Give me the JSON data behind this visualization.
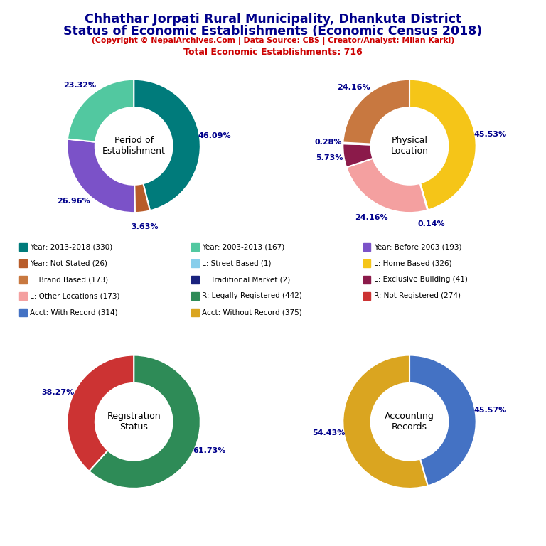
{
  "title_line1": "Chhathar Jorpati Rural Municipality, Dhankuta District",
  "title_line2": "Status of Economic Establishments (Economic Census 2018)",
  "subtitle1": "(Copyright © NepalArchives.Com | Data Source: CBS | Creator/Analyst: Milan Karki)",
  "subtitle2": "Total Economic Establishments: 716",
  "charts": [
    {
      "title": "Period of\nEstablishment",
      "slices": [
        46.09,
        3.63,
        26.96,
        23.32
      ],
      "colors": [
        "#007B7B",
        "#B85C2A",
        "#7B52C8",
        "#52C8A0"
      ],
      "labels": [
        "46.09%",
        "3.63%",
        "26.96%",
        "23.32%"
      ],
      "startangle": 90,
      "counterclock": false
    },
    {
      "title": "Physical\nLocation",
      "slices": [
        45.53,
        0.14,
        24.16,
        5.73,
        0.28,
        24.16
      ],
      "colors": [
        "#F5C518",
        "#87CEEB",
        "#F4A0A0",
        "#8B1A4A",
        "#1A237E",
        "#C87840"
      ],
      "labels": [
        "45.53%",
        "0.14%",
        "24.16%",
        "5.73%",
        "0.28%",
        "24.16%"
      ],
      "startangle": 90,
      "counterclock": false
    },
    {
      "title": "Registration\nStatus",
      "slices": [
        61.73,
        38.27
      ],
      "colors": [
        "#2E8B57",
        "#CC3333"
      ],
      "labels": [
        "61.73%",
        "38.27%"
      ],
      "startangle": 90,
      "counterclock": false
    },
    {
      "title": "Accounting\nRecords",
      "slices": [
        45.57,
        54.43
      ],
      "colors": [
        "#4472C4",
        "#DAA520"
      ],
      "labels": [
        "45.57%",
        "54.43%"
      ],
      "startangle": 90,
      "counterclock": false
    }
  ],
  "legend_rows": [
    [
      {
        "label": "Year: 2013-2018 (330)",
        "color": "#007B7B"
      },
      {
        "label": "Year: 2003-2013 (167)",
        "color": "#52C8A0"
      },
      {
        "label": "Year: Before 2003 (193)",
        "color": "#7B52C8"
      }
    ],
    [
      {
        "label": "Year: Not Stated (26)",
        "color": "#B85C2A"
      },
      {
        "label": "L: Street Based (1)",
        "color": "#87CEEB"
      },
      {
        "label": "L: Home Based (326)",
        "color": "#F5C518"
      }
    ],
    [
      {
        "label": "L: Brand Based (173)",
        "color": "#C87840"
      },
      {
        "label": "L: Traditional Market (2)",
        "color": "#1A237E"
      },
      {
        "label": "L: Exclusive Building (41)",
        "color": "#8B1A4A"
      }
    ],
    [
      {
        "label": "L: Other Locations (173)",
        "color": "#F4A0A0"
      },
      {
        "label": "R: Legally Registered (442)",
        "color": "#2E8B57"
      },
      {
        "label": "R: Not Registered (274)",
        "color": "#CC3333"
      }
    ],
    [
      {
        "label": "Acct: With Record (314)",
        "color": "#4472C4"
      },
      {
        "label": "Acct: Without Record (375)",
        "color": "#DAA520"
      },
      {
        "label": "",
        "color": null
      }
    ]
  ],
  "title_color": "#00008B",
  "subtitle1_color": "#CC0000",
  "subtitle2_color": "#CC0000",
  "label_color": "#00008B",
  "bg_color": "#FFFFFF"
}
